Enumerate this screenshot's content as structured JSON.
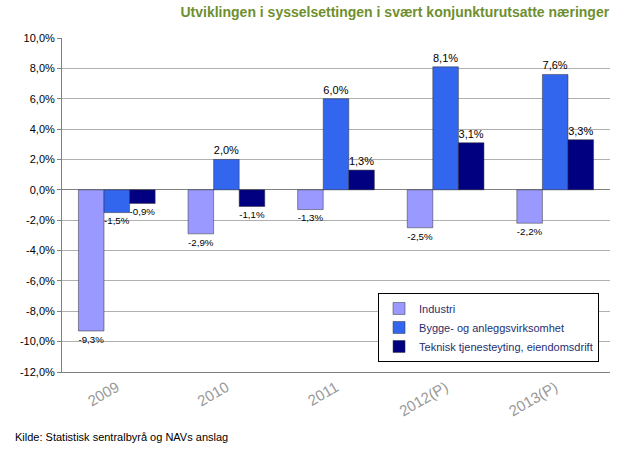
{
  "chart_data": {
    "type": "bar",
    "title": "Utviklingen i sysselsettingen i svært konjunkturutsatte næringer",
    "source": "Kilde: Statistisk sentralbyrå og NAVs anslag",
    "categories": [
      "2009",
      "2010",
      "2011",
      "2012(P)",
      "2013(P)"
    ],
    "series": [
      {
        "name": "Industri",
        "color": "#9999ff",
        "values": [
          -9.3,
          -2.9,
          -1.3,
          -2.5,
          -2.2
        ],
        "value_labels": [
          "-9,3%",
          "-2,9%",
          "-1,3%",
          "-2,5%",
          "-2,2%"
        ]
      },
      {
        "name": "Bygge- og anleggsvirksomhet",
        "color": "#3366ee",
        "values": [
          -1.5,
          2.0,
          6.0,
          8.1,
          7.6
        ],
        "value_labels": [
          "-1,5%",
          "2,0%",
          "6,0%",
          "8,1%",
          "7,6%"
        ]
      },
      {
        "name": "Teknisk tjenesteyting, eiendomsdrift",
        "color": "#000080",
        "values": [
          -0.9,
          -1.1,
          1.3,
          3.1,
          3.3
        ],
        "value_labels": [
          "-0,9%",
          "-1,1%",
          "1,3%",
          "3,1%",
          "3,3%"
        ]
      }
    ],
    "ylim": [
      -12,
      10
    ],
    "yticks": [
      {
        "value": -12,
        "label": "-12,0%"
      },
      {
        "value": -10,
        "label": "-10,0%"
      },
      {
        "value": -8,
        "label": "-8,0%"
      },
      {
        "value": -6,
        "label": "-6,0%"
      },
      {
        "value": -4,
        "label": "-4,0%"
      },
      {
        "value": -2,
        "label": "-2,0%"
      },
      {
        "value": 0,
        "label": "0,0%"
      },
      {
        "value": 2,
        "label": "2,0%"
      },
      {
        "value": 4,
        "label": "4,0%"
      },
      {
        "value": 6,
        "label": "6,0%"
      },
      {
        "value": 8,
        "label": "8,0%"
      },
      {
        "value": 10,
        "label": "10,0%"
      }
    ],
    "grid": true,
    "legend": "lower right",
    "data_labels": true
  }
}
